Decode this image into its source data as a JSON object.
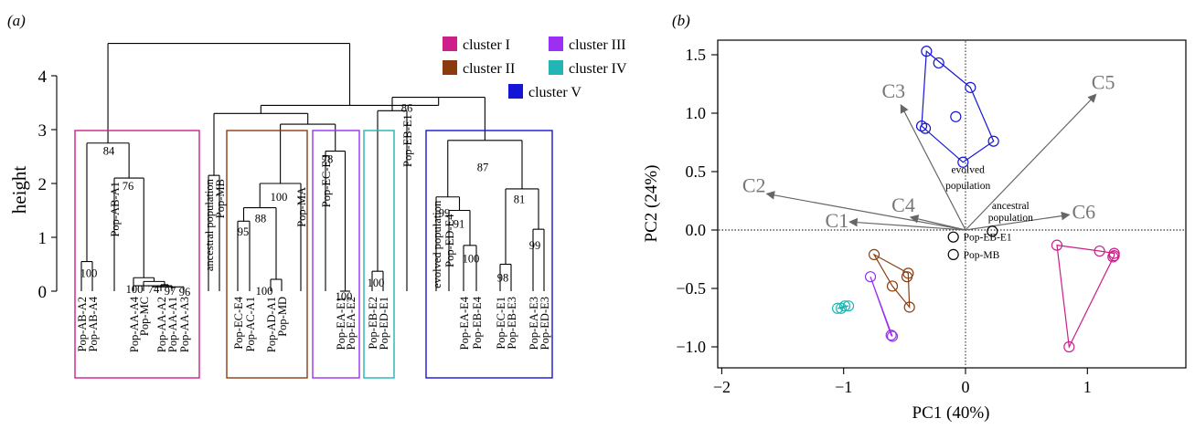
{
  "chart_data": [
    {
      "type": "dendrogram",
      "panel_label": "(a)",
      "ylabel": "height",
      "yticks": [
        0,
        1,
        2,
        3,
        4
      ],
      "legend": [
        {
          "label": "cluster I",
          "color": "#cc1f8a"
        },
        {
          "label": "cluster II",
          "color": "#8b3c0f"
        },
        {
          "label": "cluster III",
          "color": "#9b30f0"
        },
        {
          "label": "cluster IV",
          "color": "#22b5b5"
        },
        {
          "label": "cluster V",
          "color": "#1515d6"
        }
      ],
      "leaves": [
        "Pop-AB-A2",
        "Pop-AB-A4",
        "Pop-AB-A1",
        "Pop-AA-A4",
        "Pop-MC",
        "Pop-AA-A2",
        "Pop-AA-A1",
        "Pop-AA-A3",
        "ancestral population",
        "Pop-MB",
        "Pop-EC-E4",
        "Pop-AC-A1",
        "Pop-AD-A1",
        "Pop-MD",
        "Pop-MA",
        "Pop-EC-E3",
        "Pop-EA-E1",
        "Pop-EA-E2",
        "Pop-EB-E2",
        "Pop-ED-E1",
        "Pop-EB-E1",
        "evolved population",
        "Pop-ED-E4",
        "Pop-EA-E4",
        "Pop-EB-E4",
        "Pop-EC-E1",
        "Pop-EB-E3",
        "Pop-EA-E3",
        "Pop-ED-E3"
      ],
      "node_labels": [
        "84",
        "76",
        "100",
        "100",
        "74",
        "97",
        "96",
        "100",
        "88",
        "95",
        "100",
        "78",
        "100",
        "100",
        "86",
        "87",
        "99",
        "91",
        "100",
        "81",
        "98",
        "99"
      ]
    },
    {
      "type": "scatter",
      "panel_label": "(b)",
      "xlabel": "PC1 (40%)",
      "ylabel": "PC2 (24%)",
      "xlim": [
        -2.3,
        1.95
      ],
      "ylim": [
        -1.1,
        1.65
      ],
      "xticks": [
        -2,
        -1,
        0,
        1
      ],
      "yticks": [
        -1.0,
        -0.5,
        0.0,
        0.5,
        1.0,
        1.5
      ],
      "series": [
        {
          "color": "#1515d6",
          "points": [
            [
              -0.32,
              1.53
            ],
            [
              -0.22,
              1.43
            ],
            [
              -0.36,
              0.89
            ],
            [
              -0.33,
              0.87
            ],
            [
              0.04,
              1.22
            ],
            [
              -0.08,
              0.97
            ],
            [
              0.23,
              0.76
            ],
            [
              -0.02,
              0.58
            ]
          ]
        },
        {
          "color": "#8b3c0f",
          "points": [
            [
              -0.75,
              -0.21
            ],
            [
              -0.47,
              -0.37
            ],
            [
              -0.48,
              -0.4
            ],
            [
              -0.6,
              -0.48
            ],
            [
              -0.46,
              -0.66
            ]
          ]
        },
        {
          "color": "#9b30f0",
          "points": [
            [
              -0.78,
              -0.4
            ],
            [
              -0.61,
              -0.9
            ],
            [
              -0.6,
              -0.91
            ]
          ]
        },
        {
          "color": "#22b5b5",
          "points": [
            [
              -1.05,
              -0.67
            ],
            [
              -0.99,
              -0.65
            ],
            [
              -0.96,
              -0.65
            ],
            [
              -1.02,
              -0.67
            ]
          ]
        },
        {
          "color": "#cc1f8a",
          "points": [
            [
              0.75,
              -0.13
            ],
            [
              1.1,
              -0.18
            ],
            [
              1.22,
              -0.22
            ],
            [
              1.21,
              -0.23
            ],
            [
              0.85,
              -1.0
            ],
            [
              1.22,
              -0.2
            ]
          ]
        },
        {
          "color": "#000000",
          "points": [
            [
              -0.1,
              -0.06
            ],
            [
              -0.1,
              -0.21
            ],
            [
              0.22,
              -0.01
            ]
          ]
        }
      ],
      "point_labels": [
        {
          "text": "Pop-EB-E1",
          "x": -0.1,
          "y": -0.06
        },
        {
          "text": "Pop-MB",
          "x": -0.1,
          "y": -0.21
        }
      ],
      "arrows": [
        {
          "label": "C3",
          "x": -0.53,
          "y": 1.07
        },
        {
          "label": "C5",
          "x": 1.07,
          "y": 1.16
        },
        {
          "label": "C2",
          "x": -1.63,
          "y": 0.31
        },
        {
          "label": "C4",
          "x": -0.45,
          "y": 0.11
        },
        {
          "label": "C1",
          "x": -0.95,
          "y": 0.07
        },
        {
          "label": "C6",
          "x": 0.85,
          "y": 0.13
        }
      ],
      "annotations": [
        {
          "text": "evolved",
          "x": 0.02,
          "y": 0.49
        },
        {
          "text": "population",
          "x": 0.02,
          "y": 0.35
        },
        {
          "text": "ancestral",
          "x": 0.37,
          "y": 0.18
        },
        {
          "text": "population",
          "x": 0.37,
          "y": 0.08
        }
      ]
    }
  ]
}
